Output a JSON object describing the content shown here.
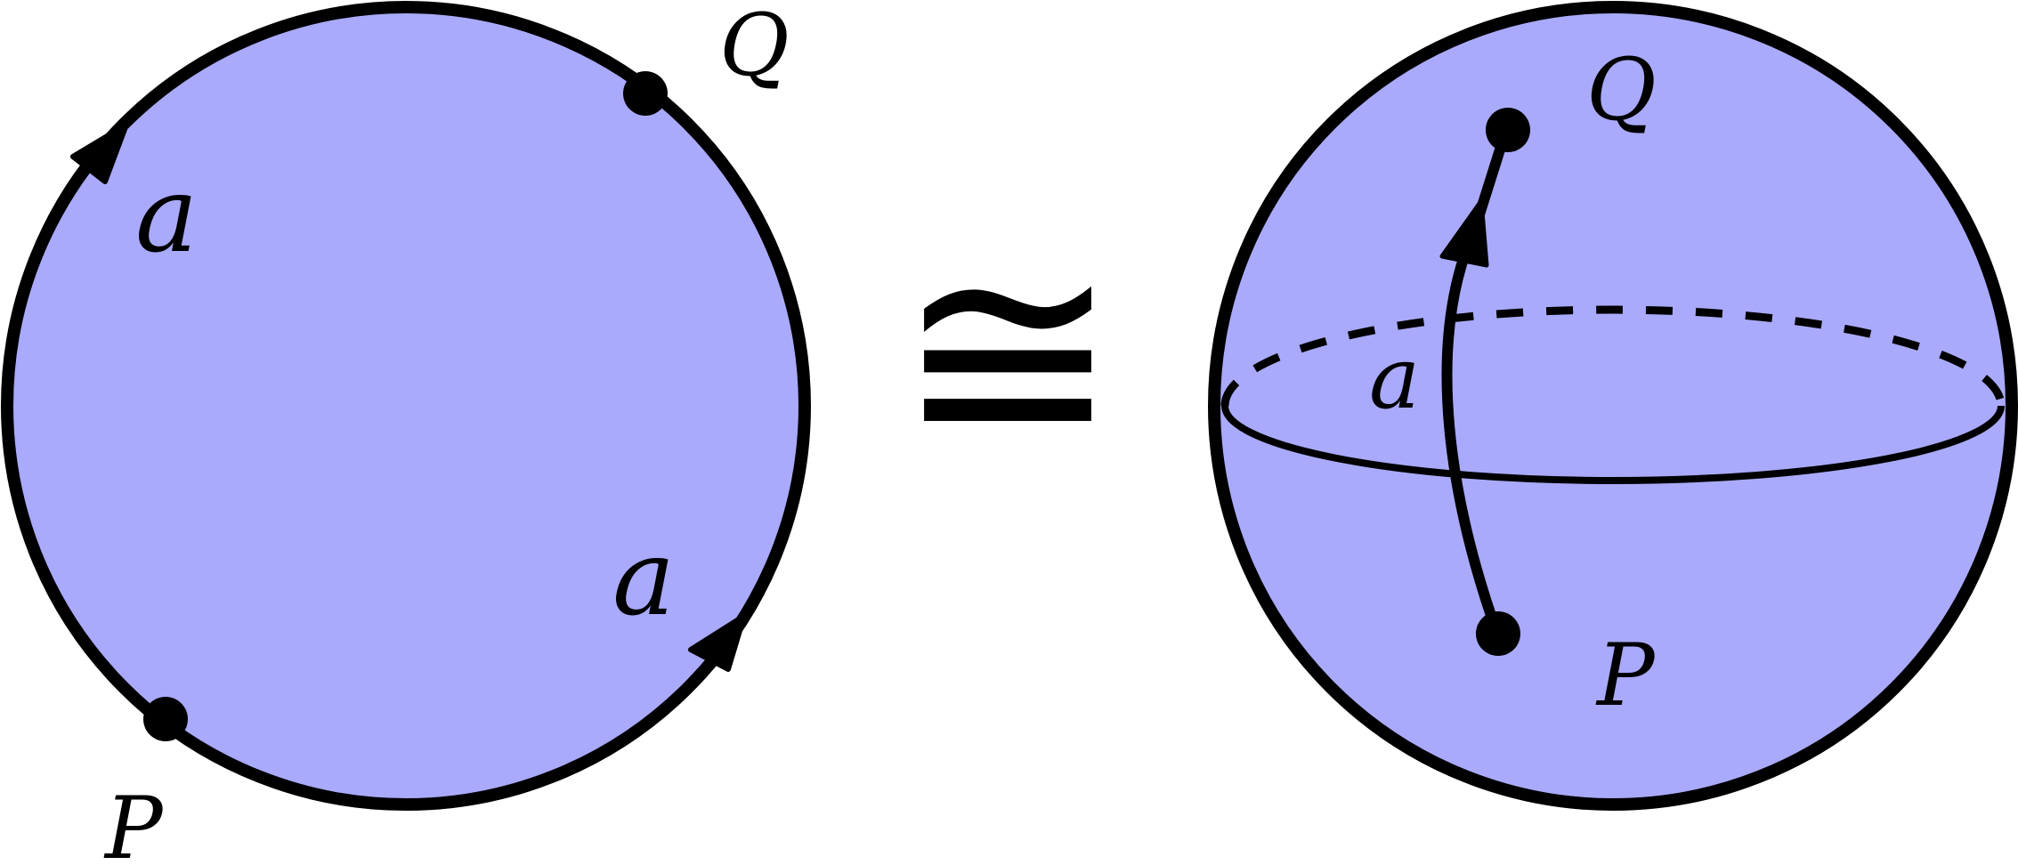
{
  "colors": {
    "fill": "#aaaafc",
    "stroke": "#000000"
  },
  "disk": {
    "edge_label_top": "a",
    "edge_label_bottom": "a",
    "point_top": "Q",
    "point_bottom": "P"
  },
  "relation_symbol": "≅",
  "sphere": {
    "path_label": "a",
    "point_top": "Q",
    "point_bottom": "P"
  }
}
